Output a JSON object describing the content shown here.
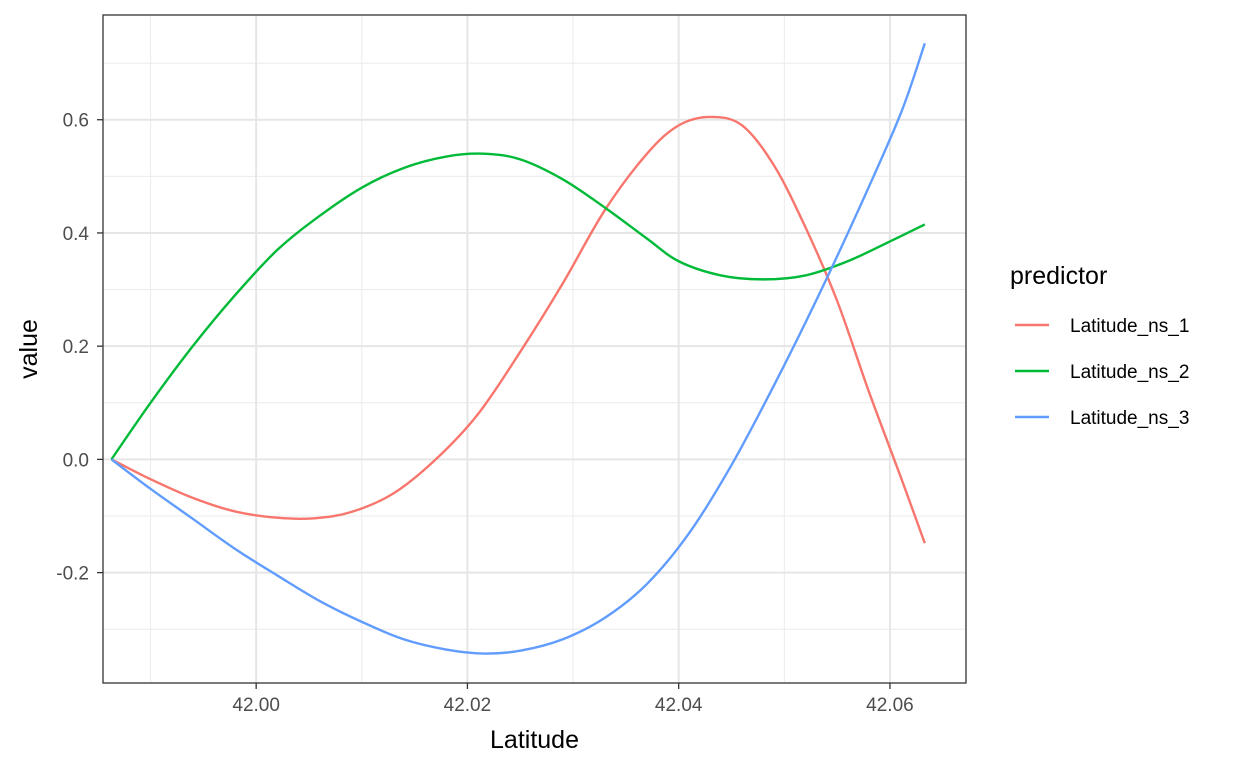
{
  "chart_data": {
    "type": "line",
    "xlabel": "Latitude",
    "ylabel": "value",
    "xlim": [
      41.9855,
      42.0672
    ],
    "ylim": [
      -0.395,
      0.785
    ],
    "x_ticks": [
      42.0,
      42.02,
      42.04,
      42.06
    ],
    "x_tick_labels": [
      "42.00",
      "42.02",
      "42.04",
      "42.06"
    ],
    "y_ticks": [
      -0.2,
      0.0,
      0.2,
      0.4,
      0.6
    ],
    "y_tick_labels": [
      "-0.2",
      "0.0",
      "0.2",
      "0.4",
      "0.6"
    ],
    "grid": true,
    "legend": {
      "title": "predictor",
      "position": "right"
    },
    "series": [
      {
        "name": "Latitude_ns_1",
        "color": "#f8766d",
        "x": [
          41.9863,
          41.99,
          41.994,
          41.998,
          42.002,
          42.0055,
          42.009,
          42.013,
          42.017,
          42.021,
          42.025,
          42.029,
          42.033,
          42.037,
          42.04,
          42.043,
          42.046,
          42.049,
          42.052,
          42.055,
          42.058,
          42.061,
          42.0633
        ],
        "values": [
          0.0,
          -0.035,
          -0.068,
          -0.092,
          -0.103,
          -0.104,
          -0.093,
          -0.06,
          0.0,
          0.08,
          0.19,
          0.31,
          0.44,
          0.54,
          0.59,
          0.605,
          0.59,
          0.52,
          0.41,
          0.28,
          0.12,
          -0.03,
          -0.148
        ]
      },
      {
        "name": "Latitude_ns_2",
        "color": "#00ba38",
        "x": [
          41.9863,
          41.99,
          41.994,
          41.998,
          42.002,
          42.006,
          42.01,
          42.014,
          42.018,
          42.0215,
          42.025,
          42.029,
          42.033,
          42.037,
          42.04,
          42.044,
          42.048,
          42.052,
          42.056,
          42.06,
          42.0633
        ],
        "values": [
          0.0,
          0.1,
          0.2,
          0.29,
          0.37,
          0.43,
          0.48,
          0.515,
          0.535,
          0.54,
          0.53,
          0.495,
          0.445,
          0.39,
          0.35,
          0.325,
          0.318,
          0.325,
          0.35,
          0.385,
          0.415
        ]
      },
      {
        "name": "Latitude_ns_3",
        "color": "#619cff",
        "x": [
          41.9863,
          41.99,
          41.994,
          41.998,
          42.002,
          42.006,
          42.01,
          42.014,
          42.018,
          42.0215,
          42.025,
          42.029,
          42.033,
          42.037,
          42.041,
          42.045,
          42.049,
          42.053,
          42.057,
          42.061,
          42.0633
        ],
        "values": [
          0.0,
          -0.052,
          -0.105,
          -0.158,
          -0.205,
          -0.25,
          -0.287,
          -0.318,
          -0.336,
          -0.343,
          -0.338,
          -0.318,
          -0.28,
          -0.22,
          -0.13,
          -0.01,
          0.13,
          0.28,
          0.44,
          0.61,
          0.735
        ]
      }
    ]
  }
}
